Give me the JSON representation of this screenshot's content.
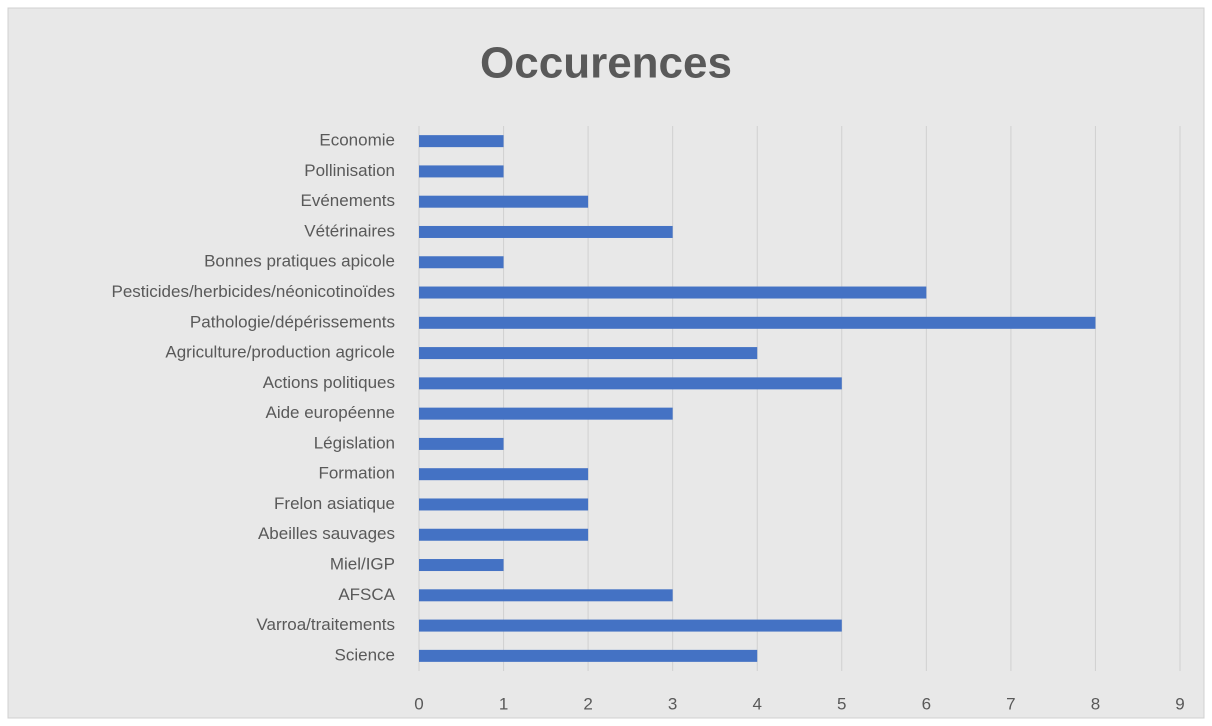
{
  "chart_data": {
    "type": "bar",
    "orientation": "horizontal",
    "title": "Occurences",
    "categories": [
      "Economie",
      "Pollinisation",
      "Evénements",
      "Vétérinaires",
      "Bonnes pratiques apicole",
      "Pesticides/herbicides/néonicotinoïdes",
      "Pathologie/dépérissements",
      "Agriculture/production agricole",
      "Actions politiques",
      "Aide européenne",
      "Législation",
      "Formation",
      "Frelon asiatique",
      "Abeilles sauvages",
      "Miel/IGP",
      "AFSCA",
      "Varroa/traitements",
      "Science"
    ],
    "values": [
      1,
      1,
      2,
      3,
      1,
      6,
      8,
      4,
      5,
      3,
      1,
      2,
      2,
      2,
      1,
      3,
      5,
      4
    ],
    "color": "#4472c4",
    "xlim": [
      0,
      9
    ],
    "xticks": [
      0,
      1,
      2,
      3,
      4,
      5,
      6,
      7,
      8,
      9
    ],
    "grid": true
  }
}
